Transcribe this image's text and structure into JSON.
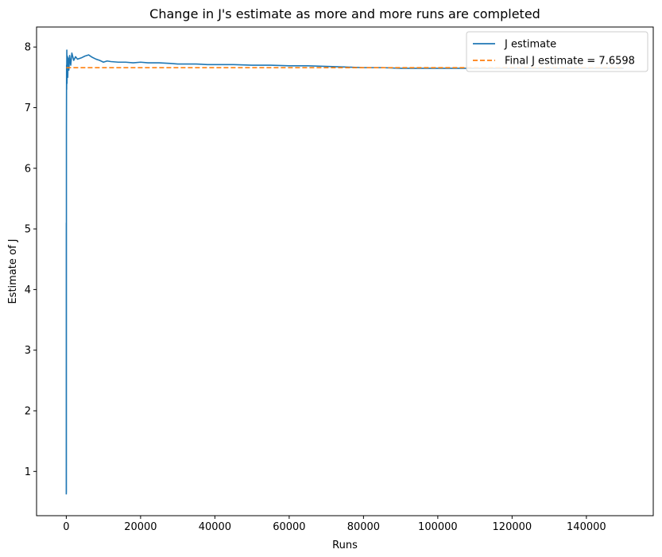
{
  "chart_data": {
    "type": "line",
    "title": "Change in J's estimate as more and more runs are completed",
    "xlabel": "Runs",
    "ylabel": "Estimate of J",
    "xlim": [
      -8000,
      158000
    ],
    "ylim": [
      0.27,
      8.33
    ],
    "xticks": [
      0,
      20000,
      40000,
      60000,
      80000,
      100000,
      120000,
      140000
    ],
    "xtick_labels": [
      "0",
      "20000",
      "40000",
      "60000",
      "80000",
      "100000",
      "120000",
      "140000"
    ],
    "yticks": [
      1,
      2,
      3,
      4,
      5,
      6,
      7,
      8
    ],
    "ytick_labels": [
      "1",
      "2",
      "3",
      "4",
      "5",
      "6",
      "7",
      "8"
    ],
    "grid": false,
    "legend_position": "top-right",
    "series": [
      {
        "name": "J estimate",
        "color": "#1f77b4",
        "style": "solid",
        "x": [
          1,
          10,
          20,
          40,
          60,
          80,
          100,
          150,
          200,
          300,
          400,
          500,
          700,
          900,
          1200,
          1500,
          2000,
          2500,
          3000,
          4000,
          5000,
          6000,
          7000,
          8000,
          9000,
          10000,
          11000,
          12000,
          14000,
          16000,
          18000,
          20000,
          22000,
          25000,
          28000,
          30000,
          32000,
          35000,
          38000,
          40000,
          45000,
          50000,
          55000,
          60000,
          65000,
          70000,
          75000,
          80000,
          85000,
          90000,
          95000,
          100000,
          110000,
          120000,
          130000,
          140000,
          150000
        ],
        "y": [
          0.62,
          5.1,
          0.65,
          6.6,
          7.2,
          7.7,
          7.3,
          7.95,
          7.4,
          7.85,
          7.5,
          7.82,
          7.62,
          7.86,
          7.7,
          7.9,
          7.78,
          7.84,
          7.8,
          7.82,
          7.85,
          7.87,
          7.83,
          7.8,
          7.78,
          7.75,
          7.77,
          7.76,
          7.75,
          7.75,
          7.74,
          7.75,
          7.74,
          7.74,
          7.73,
          7.72,
          7.72,
          7.72,
          7.71,
          7.71,
          7.71,
          7.7,
          7.7,
          7.69,
          7.69,
          7.68,
          7.67,
          7.66,
          7.66,
          7.65,
          7.65,
          7.65,
          7.65,
          7.65,
          7.65,
          7.65,
          7.65
        ]
      },
      {
        "name": "Final J estimate = 7.6598",
        "color": "#ff7f0e",
        "style": "dashed",
        "x": [
          1,
          150000
        ],
        "y": [
          7.6598,
          7.6598
        ]
      }
    ]
  }
}
